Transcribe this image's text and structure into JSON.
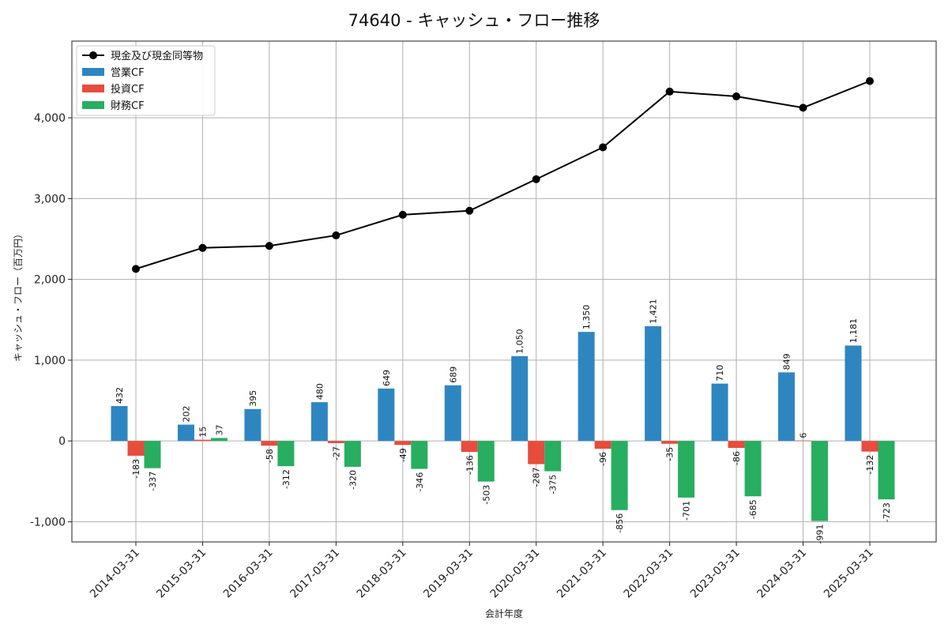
{
  "chart_data": {
    "type": "bar",
    "title": "74640 - キャッシュ・フロー推移",
    "xlabel": "会計年度",
    "ylabel": "キャッシュ・フロー（百万円）",
    "ylim": [
      -1250,
      4950
    ],
    "yticks": [
      -1000,
      0,
      1000,
      2000,
      3000,
      4000
    ],
    "ytick_labels": [
      "-1,000",
      "0",
      "1,000",
      "2,000",
      "3,000",
      "4,000"
    ],
    "grid": true,
    "legend_position": "top-left",
    "categories": [
      "2014-03-31",
      "2015-03-31",
      "2016-03-31",
      "2017-03-31",
      "2018-03-31",
      "2019-03-31",
      "2020-03-31",
      "2021-03-31",
      "2022-03-31",
      "2023-03-31",
      "2024-03-31",
      "2025-03-31"
    ],
    "line": {
      "name": "現金及び現金同等物",
      "color": "#000000",
      "values": [
        2130,
        2390,
        2415,
        2545,
        2800,
        2850,
        3240,
        3635,
        4325,
        4265,
        4125,
        4455
      ]
    },
    "series": [
      {
        "name": "営業CF",
        "color": "#2e86c1",
        "values": [
          432,
          202,
          395,
          480,
          649,
          689,
          1050,
          1350,
          1421,
          710,
          849,
          1181
        ],
        "labels": [
          "432",
          "202",
          "395",
          "480",
          "649",
          "689",
          "1,050",
          "1,350",
          "1,421",
          "710",
          "849",
          "1,181"
        ]
      },
      {
        "name": "投資CF",
        "color": "#e74c3c",
        "values": [
          -183,
          15,
          -58,
          -27,
          -49,
          -136,
          -287,
          -96,
          -35,
          -86,
          6,
          -132
        ],
        "labels": [
          "-183",
          "15",
          "-58",
          "-27",
          "-49",
          "-136",
          "-287",
          "-96",
          "-35",
          "-86",
          "6",
          "-132"
        ]
      },
      {
        "name": "財務CF",
        "color": "#27ae60",
        "values": [
          -337,
          37,
          -312,
          -320,
          -346,
          -503,
          -375,
          -856,
          -701,
          -685,
          -991,
          -723
        ],
        "labels": [
          "-337",
          "37",
          "-312",
          "-320",
          "-346",
          "-503",
          "-375",
          "-856",
          "-701",
          "-685",
          "-991",
          "-723"
        ]
      }
    ]
  }
}
